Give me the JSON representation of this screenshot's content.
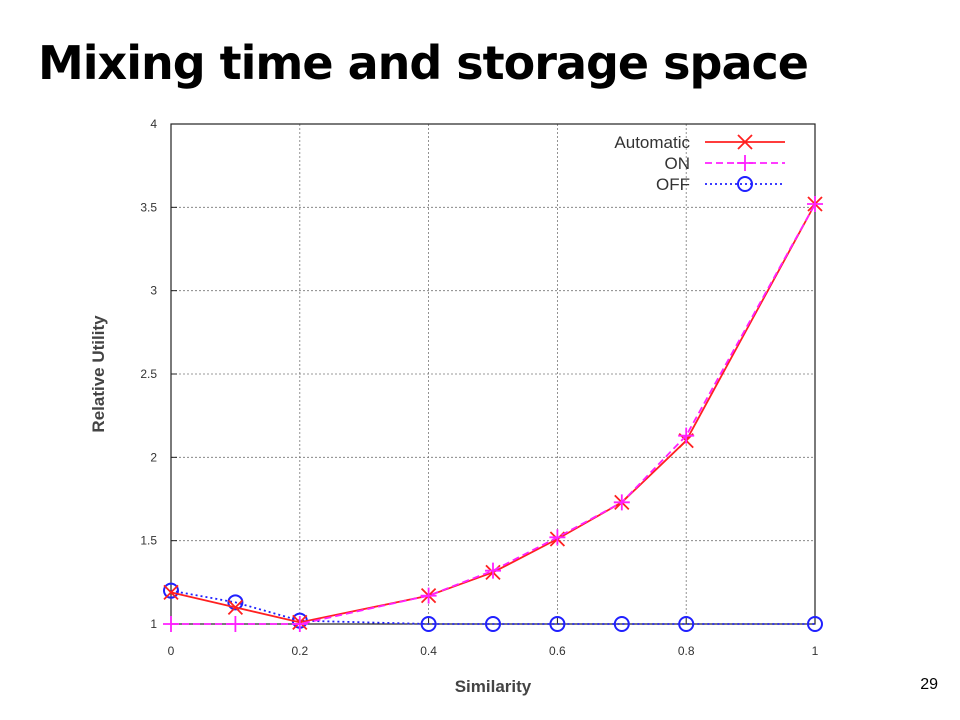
{
  "slide": {
    "title": "Mixing time and storage space",
    "page_number": "29"
  },
  "chart_data": {
    "type": "line",
    "title": "",
    "xlabel": "Similarity",
    "ylabel": "Relative Utility",
    "xlim": [
      0,
      1
    ],
    "ylim": [
      1,
      4
    ],
    "x_ticks": [
      0,
      0.2,
      0.4,
      0.6,
      0.8,
      1
    ],
    "x_tick_labels": [
      "0",
      "0.2",
      "0.4",
      "0.6",
      "0.8",
      "1"
    ],
    "y_ticks": [
      1,
      1.5,
      2,
      2.5,
      3,
      3.5,
      4
    ],
    "y_tick_labels": [
      "1",
      "1.5",
      "2",
      "2.5",
      "3",
      "3.5",
      "4"
    ],
    "grid": true,
    "legend_position": "top-right",
    "series": [
      {
        "name": "Automatic",
        "color": "#ff2020",
        "marker": "x",
        "line_style": "solid",
        "x": [
          0,
          0.1,
          0.2,
          0.4,
          0.5,
          0.6,
          0.7,
          0.8,
          1
        ],
        "y": [
          1.19,
          1.1,
          1.01,
          1.17,
          1.31,
          1.51,
          1.73,
          2.1,
          3.52
        ]
      },
      {
        "name": "ON",
        "color": "#ff20ff",
        "marker": "plus",
        "line_style": "dashed",
        "x": [
          0,
          0.1,
          0.2,
          0.4,
          0.5,
          0.6,
          0.7,
          0.8,
          1
        ],
        "y": [
          1.0,
          1.0,
          1.0,
          1.17,
          1.32,
          1.52,
          1.73,
          2.13,
          3.52
        ]
      },
      {
        "name": "OFF",
        "color": "#2020ff",
        "marker": "circle",
        "line_style": "dotted",
        "x": [
          0,
          0.1,
          0.2,
          0.4,
          0.5,
          0.6,
          0.7,
          0.8,
          1
        ],
        "y": [
          1.2,
          1.13,
          1.02,
          1.0,
          1.0,
          1.0,
          1.0,
          1.0,
          1.0
        ]
      }
    ]
  }
}
